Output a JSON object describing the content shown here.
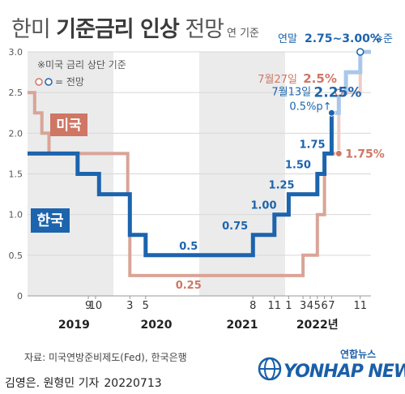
{
  "header": {
    "title_light": "한미",
    "title_bold": "기준금리 인상",
    "title_suffix": "전망",
    "unit_note": "연 기준"
  },
  "legend": {
    "note": "※미국 금리 상단 기준",
    "forecast_label": "= 전망",
    "usa_label": "미국",
    "korea_label": "한국"
  },
  "footer": {
    "source": "자료: 미국연방준비제도(Fed), 한국은행",
    "byline": "김영은. 원형민 기자",
    "code": "20220713",
    "logo_small": "연합뉴스",
    "logo_big": "YONHAP NEWS"
  },
  "colors": {
    "korea": "#1c64ad",
    "usa": "#d9a497",
    "korea_forecast": "#a9c7ea",
    "usa_forecast": "#efcdc4",
    "korea_text": "#1c64ad",
    "usa_text": "#cf7665",
    "grid": "#d7d7d7",
    "band": "#ebebeb",
    "tick": "#555555"
  },
  "chart_data": {
    "type": "line",
    "step": true,
    "ylim": [
      0,
      3.0
    ],
    "yticks": [
      "0",
      "0.5",
      "1.0",
      "1.5",
      "2.0",
      "2.5",
      "3.0"
    ],
    "grid": true,
    "x_unit": "month_index_from_2019_01",
    "xlim": [
      0,
      48
    ],
    "month_ticks": [
      {
        "label": "9",
        "x": 8.5
      },
      {
        "label": "10",
        "x": 9.5
      },
      {
        "label": "3",
        "x": 14.3
      },
      {
        "label": "5",
        "x": 16.5
      },
      {
        "label": "8",
        "x": 31.5
      },
      {
        "label": "11",
        "x": 34.5
      },
      {
        "label": "1",
        "x": 36.5
      },
      {
        "label": "3",
        "x": 38.5
      },
      {
        "label": "4",
        "x": 39.5
      },
      {
        "label": "5",
        "x": 40.5
      },
      {
        "label": "6",
        "x": 41.5
      },
      {
        "label": "7",
        "x": 42.5
      },
      {
        "label": "11",
        "x": 46.5
      }
    ],
    "years": [
      {
        "label": "2019",
        "x": 6.5,
        "band": [
          0,
          12
        ]
      },
      {
        "label": "2020",
        "x": 18.0,
        "band": null
      },
      {
        "label": "2021",
        "x": 30.0,
        "band": [
          24,
          36
        ]
      },
      {
        "label": "2022년",
        "x": 40.5,
        "band": null
      }
    ],
    "series": [
      {
        "name": "미국",
        "points": [
          [
            0,
            2.5
          ],
          [
            1,
            2.5
          ],
          [
            1,
            2.25
          ],
          [
            2,
            2.25
          ],
          [
            2,
            2.0
          ],
          [
            3,
            2.0
          ],
          [
            3,
            1.75
          ],
          [
            14,
            1.75
          ],
          [
            14,
            1.25
          ],
          [
            14.3,
            1.25
          ],
          [
            14.3,
            0.25
          ],
          [
            38.5,
            0.25
          ],
          [
            38.5,
            0.5
          ],
          [
            40.5,
            0.5
          ],
          [
            40.5,
            1.0
          ],
          [
            41.5,
            1.0
          ],
          [
            41.5,
            1.75
          ],
          [
            43.5,
            1.75
          ]
        ],
        "forecast": [
          [
            43.5,
            1.75
          ],
          [
            43.5,
            2.5
          ],
          [
            46.5,
            2.5
          ],
          [
            46.5,
            3.0
          ],
          [
            48,
            3.0
          ]
        ],
        "labels": [
          {
            "text": "0.25",
            "x": 22.5,
            "y": 0.25,
            "pos": "below"
          },
          {
            "text": "1.75%",
            "x": 43.5,
            "y": 1.75,
            "pos": "right",
            "dot": true
          }
        ],
        "forecast_labels": [
          {
            "text": "7월27일",
            "bold": "2.5%",
            "x": 43.5,
            "y": 2.5,
            "pos": "above-left",
            "dot": true
          }
        ]
      },
      {
        "name": "한국",
        "points": [
          [
            0,
            1.75
          ],
          [
            7,
            1.75
          ],
          [
            7,
            1.5
          ],
          [
            10,
            1.5
          ],
          [
            10,
            1.25
          ],
          [
            14.3,
            1.25
          ],
          [
            14.3,
            0.75
          ],
          [
            16.5,
            0.75
          ],
          [
            16.5,
            0.5
          ],
          [
            31.5,
            0.5
          ],
          [
            31.5,
            0.75
          ],
          [
            34.5,
            0.75
          ],
          [
            34.5,
            1.0
          ],
          [
            36.5,
            1.0
          ],
          [
            36.5,
            1.25
          ],
          [
            40.5,
            1.25
          ],
          [
            40.5,
            1.5
          ],
          [
            41.5,
            1.5
          ],
          [
            41.5,
            1.75
          ],
          [
            42.5,
            1.75
          ],
          [
            42.5,
            2.25
          ]
        ],
        "forecast": [
          [
            42.5,
            2.25
          ],
          [
            43.5,
            2.25
          ],
          [
            43.5,
            2.5
          ],
          [
            44.5,
            2.5
          ],
          [
            44.5,
            2.75
          ],
          [
            46.5,
            2.75
          ],
          [
            46.5,
            3.0
          ],
          [
            48,
            3.0
          ]
        ],
        "labels": [
          {
            "text": "0.5",
            "x": 22.5,
            "y": 0.5,
            "pos": "above"
          },
          {
            "text": "0.75",
            "x": 29.0,
            "y": 0.75,
            "pos": "above"
          },
          {
            "text": "1.00",
            "x": 33.0,
            "y": 1.0,
            "pos": "above"
          },
          {
            "text": "1.25",
            "x": 35.5,
            "y": 1.25,
            "pos": "above"
          },
          {
            "text": "1.50",
            "x": 37.8,
            "y": 1.5,
            "pos": "above"
          },
          {
            "text": "1.75",
            "x": 39.8,
            "y": 1.75,
            "pos": "above"
          },
          {
            "text": "7월13일",
            "bold": "2.25%",
            "extra": "0.5%p↑",
            "x": 42.5,
            "y": 2.25,
            "pos": "left",
            "dot": true
          }
        ],
        "forecast_labels": [
          {
            "text": "연말",
            "bold": "2.75~3.00%",
            "extra": "수준",
            "x": 46.5,
            "y": 3.0,
            "pos": "top",
            "dot": true
          }
        ]
      }
    ]
  }
}
